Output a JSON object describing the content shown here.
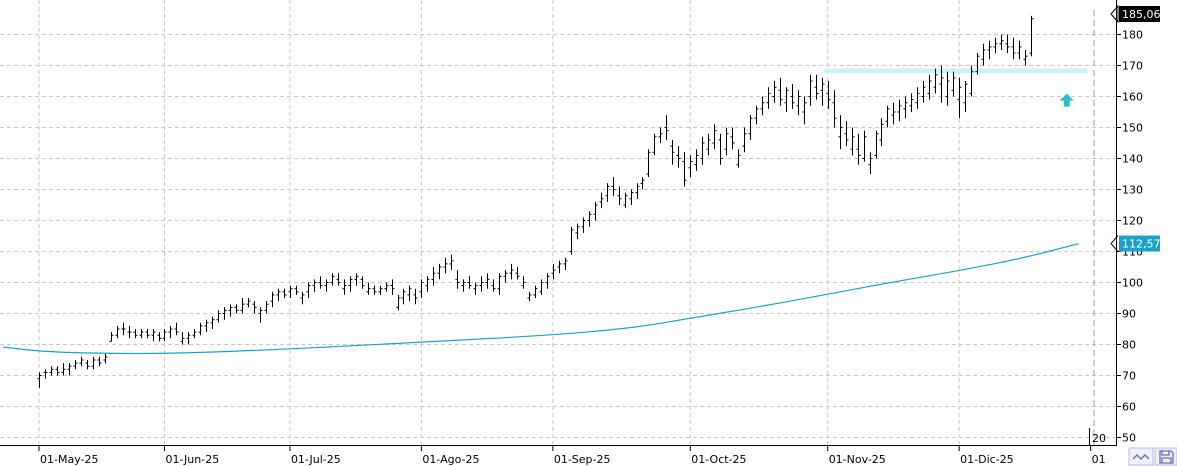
{
  "chart_data": {
    "type": "ohlc",
    "title": "",
    "xlabel": "",
    "ylabel": "",
    "ylim": [
      47,
      187
    ],
    "y_ticks": [
      50,
      60,
      70,
      80,
      90,
      100,
      110,
      120,
      130,
      140,
      150,
      160,
      170,
      180
    ],
    "x_tick_labels": [
      "01-May-25",
      "01-Jun-25",
      "01-Jul-25",
      "01-Ago-25",
      "01-Sep-25",
      "01-Oct-25",
      "01-Nov-25",
      "01-Dic-25",
      "01"
    ],
    "x_tick_index": [
      0,
      21,
      42,
      64,
      86,
      109,
      132,
      154,
      176
    ],
    "grid": true,
    "colors": {
      "bars": "#000000",
      "ma": "#1aa3c9",
      "zone": "#c8f2f6",
      "arrow": "#29c0c4",
      "grid": "#c8c8c8"
    },
    "last_price_label": "185,06",
    "ma_label": "112,57",
    "ma_last": 112.57,
    "bottom_right_label": "20",
    "resistance_zone": {
      "from_index": 132,
      "to_index": 176,
      "low": 167.5,
      "high": 169.0
    },
    "arrow_marker": {
      "index": 172,
      "value": 159
    },
    "moving_average": {
      "name": "",
      "start_index": -6,
      "points": [
        [
          -6,
          79.2
        ],
        [
          0,
          77.8
        ],
        [
          8,
          77.2
        ],
        [
          21,
          77.0
        ],
        [
          42,
          78.5
        ],
        [
          64,
          80.8
        ],
        [
          86,
          83.0
        ],
        [
          100,
          85.5
        ],
        [
          109,
          88.5
        ],
        [
          120,
          92.0
        ],
        [
          132,
          96.2
        ],
        [
          143,
          100.2
        ],
        [
          154,
          103.8
        ],
        [
          165,
          108.0
        ],
        [
          174,
          112.57
        ]
      ]
    },
    "ohlc": [
      [
        69,
        71,
        66,
        70
      ],
      [
        71,
        72,
        69,
        71
      ],
      [
        71,
        73,
        70,
        72
      ],
      [
        72,
        73,
        70,
        71
      ],
      [
        71,
        74,
        70,
        72
      ],
      [
        72,
        74,
        70,
        73
      ],
      [
        73,
        75,
        72,
        74
      ],
      [
        74,
        76,
        73,
        75
      ],
      [
        74,
        75,
        72,
        73
      ],
      [
        73,
        76,
        72,
        75
      ],
      [
        75,
        76,
        73,
        74
      ],
      [
        75,
        77,
        74,
        76
      ],
      [
        81,
        84,
        81,
        83
      ],
      [
        83,
        86,
        82,
        85
      ],
      [
        85,
        87,
        83,
        85
      ],
      [
        84,
        86,
        82,
        84
      ],
      [
        84,
        85,
        82,
        83
      ],
      [
        83,
        85,
        82,
        84
      ],
      [
        84,
        85,
        82,
        83
      ],
      [
        83,
        85,
        81,
        84
      ],
      [
        83,
        84,
        81,
        82
      ],
      [
        82,
        85,
        81,
        84
      ],
      [
        84,
        86,
        82,
        85
      ],
      [
        85,
        87,
        83,
        84
      ],
      [
        81,
        84,
        80,
        82
      ],
      [
        82,
        84,
        80,
        83
      ],
      [
        83,
        85,
        82,
        84
      ],
      [
        84,
        87,
        83,
        86
      ],
      [
        86,
        88,
        84,
        87
      ],
      [
        87,
        89,
        85,
        88
      ],
      [
        88,
        91,
        87,
        90
      ],
      [
        90,
        92,
        88,
        91
      ],
      [
        91,
        93,
        89,
        92
      ],
      [
        92,
        93,
        90,
        91
      ],
      [
        91,
        95,
        90,
        93
      ],
      [
        93,
        95,
        92,
        94
      ],
      [
        93,
        94,
        90,
        92
      ],
      [
        90,
        92,
        87,
        91
      ],
      [
        91,
        94,
        90,
        93
      ],
      [
        94,
        97,
        92,
        96
      ],
      [
        96,
        98,
        94,
        97
      ],
      [
        97,
        98,
        95,
        96
      ],
      [
        97,
        99,
        95,
        98
      ],
      [
        98,
        99,
        96,
        97
      ],
      [
        95,
        97,
        93,
        96
      ],
      [
        97,
        100,
        95,
        99
      ],
      [
        99,
        101,
        97,
        100
      ],
      [
        100,
        102,
        98,
        99
      ],
      [
        99,
        101,
        97,
        100
      ],
      [
        100,
        103,
        99,
        102
      ],
      [
        101,
        103,
        99,
        100
      ],
      [
        98,
        101,
        96,
        99
      ],
      [
        99,
        102,
        97,
        101
      ],
      [
        101,
        103,
        99,
        102
      ],
      [
        101,
        102,
        98,
        99
      ],
      [
        97,
        100,
        96,
        98
      ],
      [
        98,
        99,
        96,
        97
      ],
      [
        97,
        99,
        96,
        98
      ],
      [
        98,
        100,
        97,
        99
      ],
      [
        99,
        101,
        96,
        98
      ],
      [
        92,
        96,
        91,
        95
      ],
      [
        95,
        98,
        93,
        97
      ],
      [
        96,
        99,
        94,
        98
      ],
      [
        96,
        98,
        93,
        95
      ],
      [
        97,
        101,
        95,
        100
      ],
      [
        99,
        102,
        97,
        101
      ],
      [
        101,
        105,
        99,
        103
      ],
      [
        103,
        106,
        101,
        105
      ],
      [
        105,
        108,
        103,
        106
      ],
      [
        106,
        109,
        104,
        107
      ],
      [
        101,
        104,
        98,
        100
      ],
      [
        99,
        101,
        97,
        100
      ],
      [
        100,
        102,
        98,
        99
      ],
      [
        98,
        100,
        96,
        99
      ],
      [
        99,
        102,
        97,
        100
      ],
      [
        100,
        103,
        98,
        101
      ],
      [
        99,
        101,
        97,
        98
      ],
      [
        98,
        103,
        96,
        102
      ],
      [
        102,
        104,
        100,
        103
      ],
      [
        103,
        106,
        101,
        104
      ],
      [
        103,
        105,
        101,
        102
      ],
      [
        99,
        102,
        98,
        100
      ],
      [
        95,
        97,
        94,
        96
      ],
      [
        96,
        99,
        95,
        98
      ],
      [
        97,
        101,
        96,
        100
      ],
      [
        100,
        103,
        98,
        102
      ],
      [
        103,
        106,
        101,
        104
      ],
      [
        105,
        107,
        103,
        106
      ],
      [
        106,
        108,
        104,
        107
      ],
      [
        110,
        118,
        109,
        117
      ],
      [
        116,
        119,
        114,
        118
      ],
      [
        118,
        121,
        116,
        120
      ],
      [
        120,
        123,
        118,
        122
      ],
      [
        122,
        126,
        120,
        125
      ],
      [
        126,
        129,
        124,
        127
      ],
      [
        128,
        132,
        126,
        131
      ],
      [
        131,
        134,
        128,
        130
      ],
      [
        128,
        131,
        125,
        127
      ],
      [
        125,
        129,
        124,
        128
      ],
      [
        127,
        130,
        125,
        129
      ],
      [
        129,
        132,
        127,
        131
      ],
      [
        132,
        134,
        130,
        133
      ],
      [
        135,
        143,
        134,
        142
      ],
      [
        142,
        148,
        141,
        147
      ],
      [
        147,
        150,
        145,
        148
      ],
      [
        150,
        154,
        146,
        149
      ],
      [
        144,
        146,
        138,
        142
      ],
      [
        141,
        144,
        137,
        140
      ],
      [
        139,
        142,
        131,
        133
      ],
      [
        137,
        141,
        134,
        139
      ],
      [
        138,
        143,
        136,
        141
      ],
      [
        140,
        147,
        138,
        145
      ],
      [
        143,
        148,
        141,
        146
      ],
      [
        145,
        151,
        143,
        149
      ],
      [
        146,
        148,
        138,
        140
      ],
      [
        143,
        150,
        141,
        148
      ],
      [
        147,
        150,
        143,
        145
      ],
      [
        138,
        143,
        137,
        141
      ],
      [
        144,
        150,
        142,
        148
      ],
      [
        148,
        154,
        146,
        153
      ],
      [
        153,
        157,
        151,
        156
      ],
      [
        156,
        160,
        154,
        158
      ],
      [
        158,
        163,
        156,
        161
      ],
      [
        160,
        165,
        158,
        163
      ],
      [
        162,
        166,
        157,
        159
      ],
      [
        158,
        163,
        155,
        162
      ],
      [
        160,
        164,
        156,
        158
      ],
      [
        157,
        162,
        154,
        160
      ],
      [
        155,
        160,
        151,
        158
      ],
      [
        160,
        167,
        157,
        165
      ],
      [
        163,
        167,
        159,
        161
      ],
      [
        162,
        166,
        157,
        164
      ],
      [
        161,
        165,
        156,
        159
      ],
      [
        158,
        162,
        150,
        153
      ],
      [
        147,
        154,
        143,
        150
      ],
      [
        148,
        152,
        144,
        146
      ],
      [
        143,
        150,
        141,
        147
      ],
      [
        143,
        148,
        138,
        141
      ],
      [
        140,
        149,
        139,
        147
      ],
      [
        138,
        142,
        135,
        140
      ],
      [
        141,
        149,
        140,
        148
      ],
      [
        146,
        153,
        144,
        151
      ],
      [
        152,
        157,
        150,
        156
      ],
      [
        154,
        158,
        151,
        155
      ],
      [
        155,
        159,
        152,
        157
      ],
      [
        156,
        160,
        153,
        158
      ],
      [
        157,
        161,
        155,
        159
      ],
      [
        158,
        163,
        156,
        161
      ],
      [
        160,
        165,
        158,
        163
      ],
      [
        161,
        167,
        159,
        165
      ],
      [
        163,
        169,
        161,
        167
      ],
      [
        164,
        170,
        158,
        166
      ],
      [
        160,
        168,
        157,
        165
      ],
      [
        162,
        168,
        160,
        166
      ],
      [
        159,
        166,
        153,
        163
      ],
      [
        158,
        165,
        155,
        164
      ],
      [
        161,
        170,
        160,
        168
      ],
      [
        168,
        174,
        167,
        173
      ],
      [
        172,
        177,
        170,
        175
      ],
      [
        175,
        178,
        172,
        176
      ],
      [
        176,
        179,
        174,
        177
      ],
      [
        177,
        180,
        175,
        178
      ],
      [
        177,
        180,
        174,
        176
      ],
      [
        176,
        179,
        172,
        174
      ],
      [
        174,
        178,
        172,
        176
      ],
      [
        172,
        175,
        170,
        173
      ],
      [
        174,
        186,
        173,
        185.06
      ]
    ]
  }
}
